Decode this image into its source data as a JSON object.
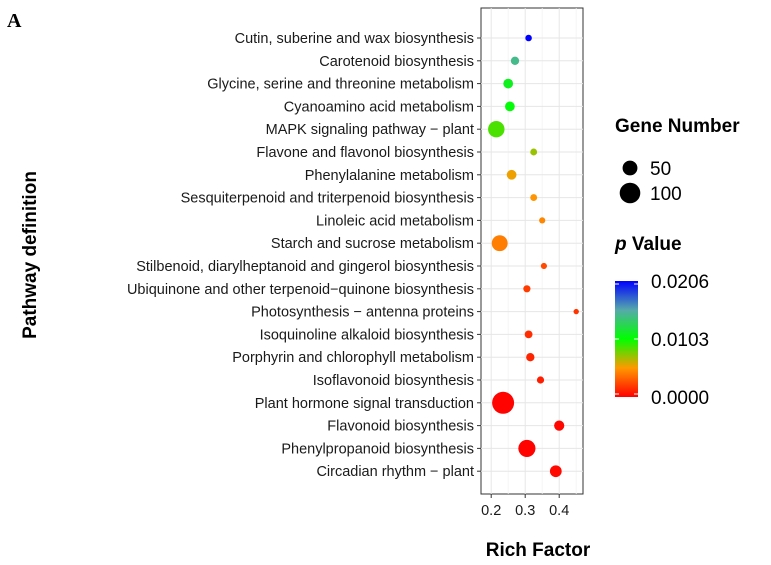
{
  "panel_label": "A",
  "legend": {
    "size_title": "Gene Number",
    "color_title_italic": "p",
    "color_title_rest": " Value"
  },
  "chart_data": {
    "type": "scatter",
    "xlabel": "Rich Factor",
    "ylabel": "Pathway definition",
    "xlim": [
      0.17,
      0.47
    ],
    "xticks": [
      0.2,
      0.3,
      0.4
    ],
    "xtick_labels": [
      "0.2",
      "0.3",
      "0.4"
    ],
    "grid": true,
    "legend_position": "right",
    "size_legend": {
      "title": "Gene Number",
      "values": [
        50,
        100
      ],
      "labels": [
        "50",
        "100"
      ]
    },
    "color_legend": {
      "title": "p Value",
      "range": [
        0.0,
        0.0206
      ],
      "tick_values": [
        0.0206,
        0.0103,
        0.0
      ],
      "tick_labels": [
        "0.0206",
        "0.0103",
        "0.0000"
      ],
      "colors": [
        "#ff0000",
        "#00ff00",
        "#0000ff"
      ]
    },
    "categories": [
      "Cutin, suberine and wax biosynthesis",
      "Carotenoid biosynthesis",
      "Glycine, serine and threonine metabolism",
      "Cyanoamino acid metabolism",
      "MAPK signaling pathway − plant",
      "Flavone and flavonol biosynthesis",
      "Phenylalanine metabolism",
      "Sesquiterpenoid and triterpenoid biosynthesis",
      "Linoleic acid metabolism",
      "Starch and sucrose metabolism",
      "Stilbenoid, diarylheptanoid and gingerol biosynthesis",
      "Ubiquinone and other terpenoid−quinone biosynthesis",
      "Photosynthesis − antenna proteins",
      "Isoquinoline alkaloid biosynthesis",
      "Porphyrin and chlorophyll metabolism",
      "Isoflavonoid biosynthesis",
      "Plant hormone signal transduction",
      "Flavonoid biosynthesis",
      "Phenylpropanoid biosynthesis",
      "Circadian rhythm − plant"
    ],
    "points": [
      {
        "pathway": "Cutin, suberine and wax biosynthesis",
        "rich_factor": 0.31,
        "gene_number": 8,
        "p_value": 0.0206
      },
      {
        "pathway": "Carotenoid biosynthesis",
        "rich_factor": 0.27,
        "gene_number": 14,
        "p_value": 0.0145
      },
      {
        "pathway": "Glycine, serine and threonine metabolism",
        "rich_factor": 0.25,
        "gene_number": 20,
        "p_value": 0.0112
      },
      {
        "pathway": "Cyanoamino acid metabolism",
        "rich_factor": 0.255,
        "gene_number": 20,
        "p_value": 0.0105
      },
      {
        "pathway": "MAPK signaling pathway − plant",
        "rich_factor": 0.215,
        "gene_number": 62,
        "p_value": 0.0088
      },
      {
        "pathway": "Flavone and flavonol biosynthesis",
        "rich_factor": 0.325,
        "gene_number": 9,
        "p_value": 0.0072
      },
      {
        "pathway": "Phenylalanine metabolism",
        "rich_factor": 0.26,
        "gene_number": 20,
        "p_value": 0.0055
      },
      {
        "pathway": "Sesquiterpenoid and triterpenoid biosynthesis",
        "rich_factor": 0.325,
        "gene_number": 9,
        "p_value": 0.005
      },
      {
        "pathway": "Linoleic acid metabolism",
        "rich_factor": 0.35,
        "gene_number": 7,
        "p_value": 0.0045
      },
      {
        "pathway": "Starch and sucrose metabolism",
        "rich_factor": 0.225,
        "gene_number": 58,
        "p_value": 0.0042
      },
      {
        "pathway": "Stilbenoid, diarylheptanoid and gingerol biosynthesis",
        "rich_factor": 0.355,
        "gene_number": 7,
        "p_value": 0.0025
      },
      {
        "pathway": "Ubiquinone and other terpenoid−quinone biosynthesis",
        "rich_factor": 0.305,
        "gene_number": 10,
        "p_value": 0.002
      },
      {
        "pathway": "Photosynthesis − antenna proteins",
        "rich_factor": 0.45,
        "gene_number": 5,
        "p_value": 0.0018
      },
      {
        "pathway": "Isoquinoline alkaloid biosynthesis",
        "rich_factor": 0.31,
        "gene_number": 12,
        "p_value": 0.0015
      },
      {
        "pathway": "Porphyrin and chlorophyll metabolism",
        "rich_factor": 0.315,
        "gene_number": 14,
        "p_value": 0.0012
      },
      {
        "pathway": "Isoflavonoid biosynthesis",
        "rich_factor": 0.345,
        "gene_number": 10,
        "p_value": 0.001
      },
      {
        "pathway": "Plant hormone signal transduction",
        "rich_factor": 0.235,
        "gene_number": 115,
        "p_value": 0.0001
      },
      {
        "pathway": "Flavonoid biosynthesis",
        "rich_factor": 0.4,
        "gene_number": 22,
        "p_value": 0.0002
      },
      {
        "pathway": "Phenylpropanoid biosynthesis",
        "rich_factor": 0.305,
        "gene_number": 68,
        "p_value": 0.0001
      },
      {
        "pathway": "Circadian rhythm − plant",
        "rich_factor": 0.39,
        "gene_number": 30,
        "p_value": 0.0003
      }
    ]
  }
}
